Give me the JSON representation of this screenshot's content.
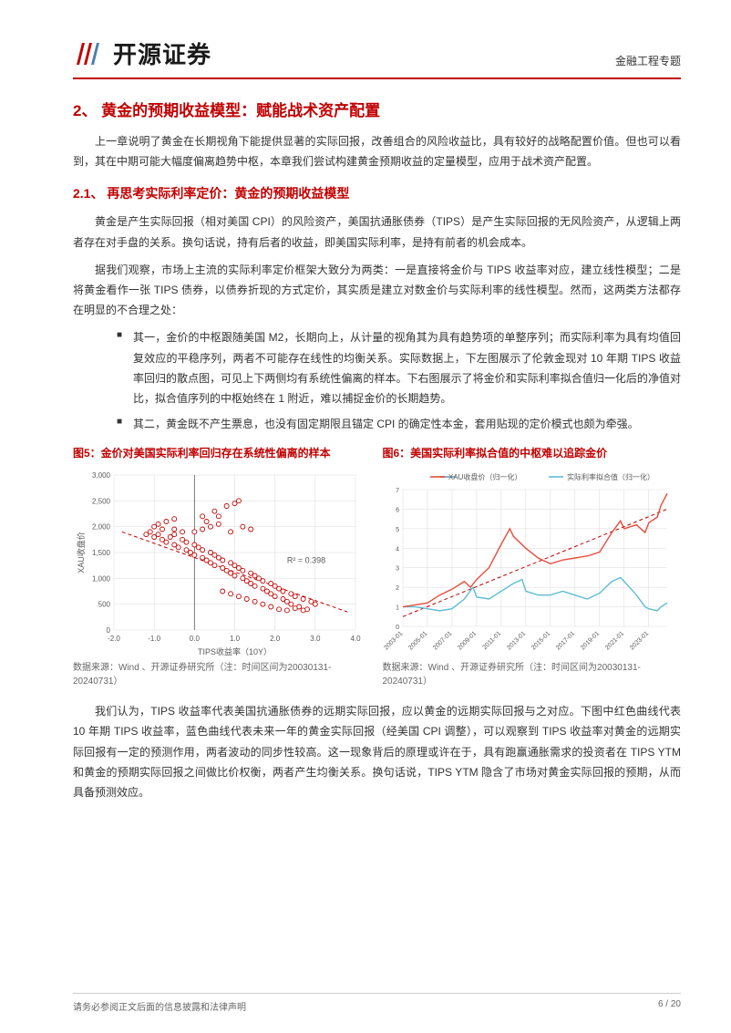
{
  "header": {
    "logo_text": "开源证券",
    "right_text": "金融工程专题"
  },
  "section": {
    "title": "2、 黄金的预期收益模型：赋能战术资产配置",
    "para1": "上一章说明了黄金在长期视角下能提供显著的实际回报，改善组合的风险收益比，具有较好的战略配置价值。但也可以看到，其在中期可能大幅度偏离趋势中枢，本章我们尝试构建黄金预期收益的定量模型，应用于战术资产配置。",
    "subsection_title": "2.1、 再思考实际利率定价：黄金的预期收益模型",
    "para2": "黄金是产生实际回报（相对美国 CPI）的风险资产，美国抗通胀债券（TIPS）是产生实际回报的无风险资产，从逻辑上两者存在对手盘的关系。换句话说，持有后者的收益，即美国实际利率，是持有前者的机会成本。",
    "para3": "据我们观察，市场上主流的实际利率定价框架大致分为两类：一是直接将金价与 TIPS 收益率对应，建立线性模型；二是将黄金看作一张 TIPS 债券，以债券折现的方式定价，其实质是建立对数金价与实际利率的线性模型。然而，这两类方法都存在明显的不合理之处：",
    "bullet1": "其一，金价的中枢跟随美国 M2，长期向上，从计量的视角其为具有趋势项的单整序列；而实际利率为具有均值回复效应的平稳序列，两者不可能存在线性的均衡关系。实际数据上，下左图展示了伦敦金现对 10 年期 TIPS 收益率回归的散点图，可见上下两侧均有系统性偏离的样本。下右图展示了将金价和实际利率拟合值归一化后的净值对比，拟合值序列的中枢始终在 1 附近，难以捕捉金价的长期趋势。",
    "bullet2": "其二，黄金既不产生票息，也没有固定期限且锚定 CPI 的确定性本金，套用贴现的定价模式也颇为牵强。",
    "para4": "我们认为，TIPS 收益率代表美国抗通胀债券的远期实际回报，应以黄金的远期实际回报与之对应。下图中红色曲线代表 10 年期 TIPS 收益率，蓝色曲线代表未来一年的黄金实际回报（经美国 CPI 调整），可以观察到 TIPS 收益率对黄金的远期实际回报有一定的预测作用，两者波动的同步性较高。这一现象背后的原理或许在于，具有跑赢通胀需求的投资者在 TIPS YTM 和黄金的预期实际回报之间做比价权衡，两者产生均衡关系。换句话说，TIPS YTM 隐含了市场对黄金实际回报的预期，从而具备预测效应。"
  },
  "chart_left": {
    "type": "scatter",
    "title": "图5：金价对美国实际利率回归存在系统性偏离的样本",
    "xlabel": "TIPS收益率（10Y）",
    "ylabel": "XAU收盘价",
    "xlim": [
      -2.0,
      4.0
    ],
    "xticks": [
      -2.0,
      -1.0,
      0.0,
      1.0,
      2.0,
      3.0,
      4.0
    ],
    "ylim": [
      0,
      3000
    ],
    "yticks": [
      0,
      500,
      1000,
      1500,
      2000,
      2500,
      3000
    ],
    "r2_label": "R² = 0.398",
    "r2_pos": [
      2.3,
      1300
    ],
    "point_color": "#c00000",
    "point_fill": "#ffffff",
    "point_radius": 2.5,
    "fit_line": {
      "x1": -1.8,
      "y1": 1900,
      "x2": 3.8,
      "y2": 350,
      "color": "#c00000",
      "dash": "4,3"
    },
    "grid_color": "#d9d9d9",
    "axis_color": "#595959",
    "label_fontsize": 9,
    "tick_fontsize": 8,
    "background_color": "#ffffff",
    "points": [
      [
        -1.2,
        1850
      ],
      [
        -1.1,
        1900
      ],
      [
        -1.0,
        1800
      ],
      [
        -0.9,
        1850
      ],
      [
        -0.8,
        1750
      ],
      [
        -0.8,
        1950
      ],
      [
        -0.7,
        1700
      ],
      [
        -0.6,
        1800
      ],
      [
        -0.5,
        1650
      ],
      [
        -0.5,
        1850
      ],
      [
        -0.4,
        1600
      ],
      [
        -0.3,
        1750
      ],
      [
        -0.2,
        1550
      ],
      [
        -0.2,
        1700
      ],
      [
        -0.1,
        1500
      ],
      [
        0.0,
        1650
      ],
      [
        0.0,
        1450
      ],
      [
        0.1,
        1600
      ],
      [
        0.2,
        1400
      ],
      [
        0.2,
        1550
      ],
      [
        0.3,
        1350
      ],
      [
        0.4,
        1500
      ],
      [
        0.4,
        1300
      ],
      [
        0.5,
        1450
      ],
      [
        0.5,
        1250
      ],
      [
        0.6,
        1400
      ],
      [
        0.7,
        1200
      ],
      [
        0.7,
        1350
      ],
      [
        0.8,
        1150
      ],
      [
        0.9,
        1300
      ],
      [
        0.9,
        1100
      ],
      [
        1.0,
        1250
      ],
      [
        1.0,
        1050
      ],
      [
        1.1,
        1200
      ],
      [
        1.2,
        1000
      ],
      [
        1.2,
        1150
      ],
      [
        1.3,
        950
      ],
      [
        1.4,
        1100
      ],
      [
        1.4,
        900
      ],
      [
        1.5,
        1050
      ],
      [
        1.5,
        850
      ],
      [
        1.6,
        1000
      ],
      [
        1.7,
        800
      ],
      [
        1.7,
        950
      ],
      [
        1.8,
        750
      ],
      [
        1.9,
        900
      ],
      [
        1.9,
        700
      ],
      [
        2.0,
        850
      ],
      [
        2.0,
        650
      ],
      [
        2.1,
        800
      ],
      [
        2.2,
        600
      ],
      [
        2.2,
        750
      ],
      [
        2.3,
        550
      ],
      [
        2.4,
        700
      ],
      [
        2.4,
        500
      ],
      [
        2.5,
        650
      ],
      [
        2.6,
        450
      ],
      [
        2.7,
        600
      ],
      [
        2.8,
        400
      ],
      [
        2.9,
        550
      ],
      [
        3.0,
        500
      ],
      [
        -1.0,
        2000
      ],
      [
        -0.9,
        2050
      ],
      [
        -0.7,
        2100
      ],
      [
        -0.5,
        2150
      ],
      [
        0.2,
        2200
      ],
      [
        0.5,
        2300
      ],
      [
        0.8,
        2400
      ],
      [
        1.0,
        2450
      ],
      [
        1.1,
        2500
      ],
      [
        0.3,
        2100
      ],
      [
        0.6,
        2200
      ],
      [
        0.9,
        1900
      ],
      [
        1.2,
        2000
      ],
      [
        1.4,
        1950
      ],
      [
        0.0,
        1900
      ],
      [
        0.2,
        1950
      ],
      [
        0.4,
        2000
      ],
      [
        0.6,
        2050
      ],
      [
        -0.3,
        1900
      ],
      [
        -0.5,
        1950
      ],
      [
        1.5,
        550
      ],
      [
        1.7,
        500
      ],
      [
        1.9,
        450
      ],
      [
        2.1,
        400
      ],
      [
        2.3,
        380
      ],
      [
        2.5,
        420
      ],
      [
        2.7,
        380
      ],
      [
        1.3,
        600
      ],
      [
        1.1,
        650
      ],
      [
        0.9,
        700
      ],
      [
        0.7,
        750
      ]
    ],
    "source": "数据来源：Wind 、开源证券研究所（注：时间区间为20030131-20240731）"
  },
  "chart_right": {
    "type": "line",
    "title": "图6：美国实际利率拟合值的中枢难以追踪金价",
    "legend": [
      {
        "label": "XAU收盘价（归一化）",
        "color": "#e84c3d"
      },
      {
        "label": "实际利率拟合值（归一化）",
        "color": "#5fbcd3"
      }
    ],
    "xlim": [
      2003,
      2024.5
    ],
    "xticks_labels": [
      "2003-01",
      "2005-01",
      "2007-01",
      "2009-01",
      "2011-01",
      "2013-01",
      "2015-01",
      "2017-01",
      "2019-01",
      "2021-01",
      "2023-01"
    ],
    "xticks_pos": [
      2003,
      2005,
      2007,
      2009,
      2011,
      2013,
      2015,
      2017,
      2019,
      2021,
      2023
    ],
    "ylim": [
      0,
      7
    ],
    "yticks": [
      0,
      1,
      2,
      3,
      4,
      5,
      6,
      7
    ],
    "grid_color": "#d9d9d9",
    "axis_color": "#595959",
    "label_fontsize": 9,
    "tick_fontsize": 7,
    "background_color": "#ffffff",
    "trend_line": {
      "x1": 2003,
      "y1": 0.5,
      "x2": 2024.5,
      "y2": 6.0,
      "color": "#c00000",
      "dash": "4,3"
    },
    "series1": [
      [
        2003,
        1.0
      ],
      [
        2004,
        1.1
      ],
      [
        2005,
        1.2
      ],
      [
        2006,
        1.6
      ],
      [
        2007,
        1.9
      ],
      [
        2008,
        2.3
      ],
      [
        2008.5,
        2.0
      ],
      [
        2009,
        2.4
      ],
      [
        2010,
        3.0
      ],
      [
        2011,
        4.2
      ],
      [
        2011.7,
        5.0
      ],
      [
        2012,
        4.6
      ],
      [
        2013,
        4.0
      ],
      [
        2014,
        3.5
      ],
      [
        2015,
        3.2
      ],
      [
        2016,
        3.4
      ],
      [
        2017,
        3.5
      ],
      [
        2018,
        3.6
      ],
      [
        2019,
        3.8
      ],
      [
        2020,
        4.8
      ],
      [
        2020.7,
        5.4
      ],
      [
        2021,
        5.0
      ],
      [
        2022,
        5.2
      ],
      [
        2022.7,
        4.8
      ],
      [
        2023,
        5.3
      ],
      [
        2023.7,
        5.6
      ],
      [
        2024,
        6.2
      ],
      [
        2024.5,
        6.8
      ]
    ],
    "series2": [
      [
        2003,
        1.0
      ],
      [
        2004,
        1.0
      ],
      [
        2005,
        0.9
      ],
      [
        2006,
        0.8
      ],
      [
        2007,
        0.9
      ],
      [
        2008,
        1.4
      ],
      [
        2008.7,
        2.0
      ],
      [
        2009,
        1.5
      ],
      [
        2010,
        1.4
      ],
      [
        2011,
        1.8
      ],
      [
        2012,
        2.2
      ],
      [
        2012.7,
        2.4
      ],
      [
        2013,
        1.8
      ],
      [
        2014,
        1.6
      ],
      [
        2015,
        1.6
      ],
      [
        2016,
        1.8
      ],
      [
        2017,
        1.6
      ],
      [
        2018,
        1.4
      ],
      [
        2019,
        1.7
      ],
      [
        2020,
        2.3
      ],
      [
        2020.7,
        2.5
      ],
      [
        2021,
        2.3
      ],
      [
        2022,
        1.6
      ],
      [
        2022.7,
        1.0
      ],
      [
        2023,
        0.9
      ],
      [
        2023.7,
        0.8
      ],
      [
        2024,
        1.0
      ],
      [
        2024.5,
        1.2
      ]
    ],
    "source": "数据来源：Wind 、开源证券研究所（注：时间区间为20030131-20240731）"
  },
  "footer": {
    "left": "请务必参阅正文后面的信息披露和法律声明",
    "right": "6 / 20"
  },
  "colors": {
    "brand_red": "#c00000",
    "text": "#333333",
    "text_light": "#666666"
  }
}
